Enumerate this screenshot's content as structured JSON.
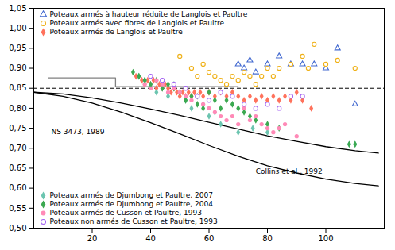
{
  "chart_data": {
    "type": "scatter",
    "xlim": [
      0,
      120
    ],
    "xticks": [
      20,
      40,
      60,
      80,
      100
    ],
    "ylim": [
      0.5,
      1.05
    ],
    "yticks": [
      {
        "value": 0.5,
        "label": "0,50"
      },
      {
        "value": 0.55,
        "label": "0,55"
      },
      {
        "value": 0.6,
        "label": "0,60"
      },
      {
        "value": 0.65,
        "label": "0,65"
      },
      {
        "value": 0.7,
        "label": "0,70"
      },
      {
        "value": 0.75,
        "label": "0,75"
      },
      {
        "value": 0.8,
        "label": "0,80"
      },
      {
        "value": 0.85,
        "label": "0,85"
      },
      {
        "value": 0.9,
        "label": "0,90"
      },
      {
        "value": 0.95,
        "label": "0,95"
      },
      {
        "value": 1.0,
        "label": "1,00"
      },
      {
        "value": 1.05,
        "label": "1,05"
      }
    ],
    "grid": false,
    "annotations": [
      {
        "text": "NS 3473, 1989",
        "x": 6,
        "y": 0.735
      },
      {
        "text": "Collins et al., 1992",
        "x": 76,
        "y": 0.636
      }
    ],
    "series": [
      {
        "type": "line",
        "color": "black",
        "line_style": "solid",
        "x": [
          0,
          10,
          20,
          30,
          40,
          50,
          60,
          70,
          80,
          90,
          100,
          110,
          118
        ],
        "values": [
          0.84,
          0.836,
          0.826,
          0.813,
          0.798,
          0.782,
          0.765,
          0.748,
          0.731,
          0.717,
          0.704,
          0.694,
          0.688
        ]
      },
      {
        "type": "line",
        "color": "black",
        "line_style": "solid",
        "x": [
          0,
          10,
          20,
          30,
          40,
          50,
          60,
          70,
          80,
          90,
          100,
          110,
          118
        ],
        "values": [
          0.84,
          0.83,
          0.813,
          0.79,
          0.764,
          0.736,
          0.707,
          0.68,
          0.656,
          0.638,
          0.623,
          0.612,
          0.606
        ]
      },
      {
        "type": "hline",
        "color": "black",
        "line_style": "dashed",
        "values": [
          0.85
        ]
      },
      {
        "type": "line",
        "color": "gray",
        "line_style": "solid",
        "x": [
          5,
          28,
          28,
          70
        ],
        "values": [
          0.876,
          0.876,
          0.854,
          0.854
        ]
      },
      {
        "type": "scatter",
        "name": "Poteaux armés à hauteur réduite de Langlois et Paultre",
        "marker": "triangle-open",
        "legend": "upper left",
        "x": [
          70,
          72,
          74,
          76,
          80,
          84,
          88,
          92,
          96,
          100,
          104,
          110
        ],
        "values": [
          0.91,
          0.9,
          0.92,
          0.89,
          0.91,
          0.93,
          0.91,
          0.91,
          0.91,
          0.9,
          0.95,
          0.81
        ]
      },
      {
        "type": "scatter",
        "name": "Poteaux armés avec fibres de Langlois et Paultre",
        "marker": "circle-open",
        "legend": "upper left",
        "x": [
          50,
          54,
          56,
          58,
          60,
          62,
          64,
          66,
          68,
          70,
          72,
          74,
          76,
          78,
          80,
          82,
          84,
          88,
          92,
          94,
          96,
          100,
          104,
          110
        ],
        "values": [
          0.93,
          0.9,
          0.88,
          0.91,
          0.89,
          0.88,
          0.87,
          0.86,
          0.88,
          0.87,
          0.89,
          0.88,
          0.86,
          0.88,
          0.9,
          0.88,
          0.9,
          0.91,
          0.93,
          0.9,
          0.96,
          0.91,
          0.92,
          0.9
        ]
      },
      {
        "type": "scatter",
        "name": "Poteaux armés de Langlois et Paultre",
        "marker": "diamond",
        "legend": "upper left",
        "x": [
          35,
          37,
          38,
          39,
          40,
          41,
          42,
          43,
          44,
          45,
          46,
          47,
          48,
          49,
          50,
          51,
          52,
          53,
          54,
          55,
          56,
          57,
          58,
          60,
          62,
          64,
          66,
          68,
          70,
          72,
          74,
          76,
          78,
          80,
          82,
          84,
          86,
          88,
          90,
          92,
          95
        ],
        "values": [
          0.88,
          0.87,
          0.86,
          0.87,
          0.86,
          0.87,
          0.85,
          0.86,
          0.85,
          0.86,
          0.85,
          0.84,
          0.85,
          0.84,
          0.83,
          0.84,
          0.83,
          0.84,
          0.83,
          0.84,
          0.83,
          0.84,
          0.83,
          0.84,
          0.83,
          0.84,
          0.83,
          0.84,
          0.83,
          0.82,
          0.83,
          0.82,
          0.83,
          0.82,
          0.83,
          0.82,
          0.83,
          0.82,
          0.84,
          0.82,
          0.8
        ]
      },
      {
        "type": "scatter",
        "name": "Poteaux armés de Djumbong et Paultre, 2007",
        "marker": "diamond",
        "legend": "lower left",
        "x": [
          36,
          38,
          40,
          42,
          44,
          46,
          48,
          50,
          52,
          54,
          56,
          58,
          60,
          62,
          64,
          70,
          75,
          80,
          108,
          110
        ],
        "values": [
          0.88,
          0.87,
          0.86,
          0.84,
          0.85,
          0.83,
          0.86,
          0.84,
          0.82,
          0.8,
          0.83,
          0.81,
          0.78,
          0.79,
          0.76,
          0.74,
          0.75,
          0.74,
          0.71,
          0.71
        ]
      },
      {
        "type": "scatter",
        "name": "Poteaux armés de Djumbong et Paultre, 2004",
        "marker": "diamond",
        "legend": "lower left",
        "x": [
          34,
          36,
          38,
          40,
          42,
          44,
          46,
          48,
          50,
          52,
          54,
          56,
          58,
          60,
          62,
          64,
          66,
          68,
          70,
          72,
          74,
          76,
          80,
          84,
          108,
          110
        ],
        "values": [
          0.89,
          0.88,
          0.87,
          0.86,
          0.87,
          0.85,
          0.86,
          0.85,
          0.84,
          0.82,
          0.83,
          0.81,
          0.8,
          0.84,
          0.82,
          0.8,
          0.82,
          0.81,
          0.8,
          0.79,
          0.78,
          0.77,
          0.76,
          0.75,
          0.71,
          0.71
        ]
      },
      {
        "type": "scatter",
        "name": "Poteaux armés de Cusson et Paultre, 1993",
        "marker": "circle",
        "legend": "lower left",
        "x": [
          38,
          40,
          42,
          44,
          46,
          48,
          50,
          52,
          54,
          56,
          58,
          60,
          62,
          64,
          66,
          68,
          70,
          72,
          74,
          76,
          78,
          80,
          82,
          84,
          86,
          90
        ],
        "values": [
          0.86,
          0.85,
          0.87,
          0.86,
          0.84,
          0.85,
          0.84,
          0.83,
          0.82,
          0.83,
          0.81,
          0.8,
          0.79,
          0.78,
          0.77,
          0.78,
          0.76,
          0.8,
          0.77,
          0.78,
          0.76,
          0.75,
          0.74,
          0.75,
          0.76,
          0.73
        ]
      },
      {
        "type": "scatter",
        "name": "Poteaux non armés de Cusson et Paultre, 1993",
        "marker": "circle-open",
        "legend": "lower left",
        "x": [
          40,
          44,
          48,
          52,
          56,
          60,
          64,
          68,
          72,
          76,
          80,
          84,
          88,
          92
        ],
        "values": [
          0.88,
          0.87,
          0.86,
          0.85,
          0.83,
          0.82,
          0.84,
          0.83,
          0.81,
          0.8,
          0.81,
          0.8,
          0.83,
          0.83
        ]
      }
    ]
  }
}
